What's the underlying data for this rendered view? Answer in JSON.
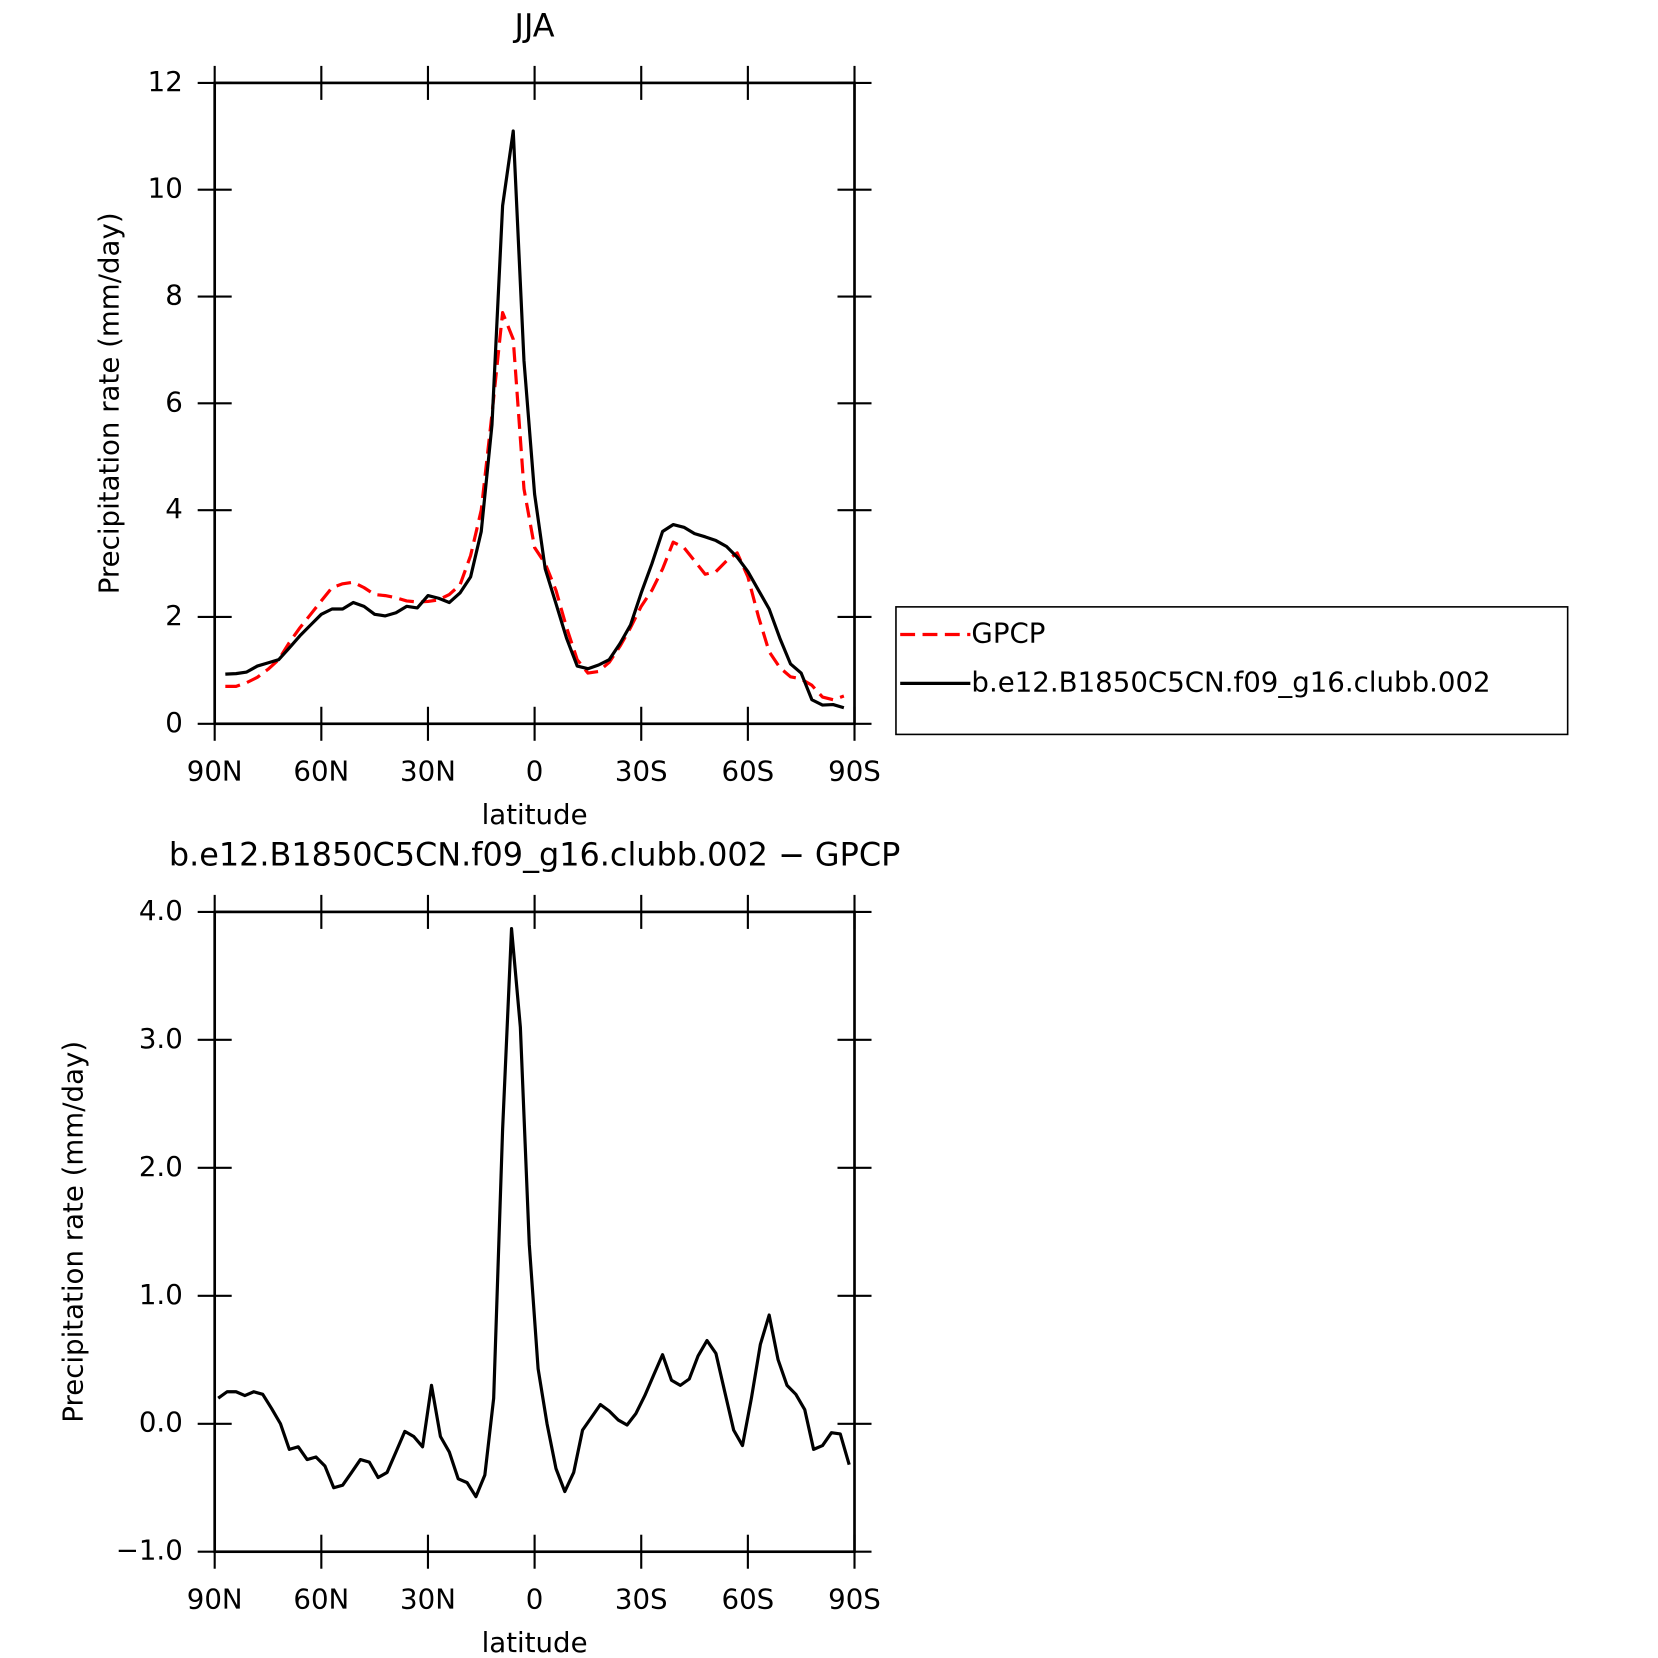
{
  "chart_data": [
    {
      "type": "line",
      "title": "JJA",
      "xlabel": "latitude",
      "ylabel": "Precipitation rate (mm/day)",
      "x": [
        87,
        84,
        81,
        78,
        75,
        72,
        69,
        66,
        63,
        60,
        57,
        54,
        51,
        48,
        45,
        42,
        39,
        36,
        33,
        30,
        27,
        24,
        21,
        18,
        15,
        12,
        9,
        6,
        3,
        0,
        -3,
        -6,
        -9,
        -12,
        -15,
        -18,
        -21,
        -24,
        -27,
        -30,
        -33,
        -36,
        -39,
        -42,
        -45,
        -48,
        -51,
        -54,
        -57,
        -60,
        -63,
        -66,
        -69,
        -72,
        -75,
        -78,
        -81,
        -84,
        -87
      ],
      "series": [
        {
          "name": "GPCP",
          "color": "#ff0000",
          "line_style": "dashed",
          "values": [
            0.7,
            0.7,
            0.77,
            0.87,
            1.02,
            1.2,
            1.52,
            1.8,
            2.05,
            2.3,
            2.55,
            2.62,
            2.65,
            2.55,
            2.42,
            2.4,
            2.36,
            2.3,
            2.28,
            2.29,
            2.32,
            2.42,
            2.6,
            3.15,
            4.0,
            5.8,
            7.7,
            7.2,
            4.4,
            3.3,
            3.0,
            2.5,
            1.8,
            1.2,
            0.95,
            0.98,
            1.15,
            1.45,
            1.8,
            2.2,
            2.5,
            2.9,
            3.4,
            3.3,
            3.05,
            2.8,
            2.85,
            3.05,
            3.2,
            2.75,
            2.0,
            1.35,
            1.05,
            0.88,
            0.84,
            0.72,
            0.5,
            0.45,
            0.52
          ]
        },
        {
          "name": "b.e12.B1850C5CN.f09_g16.clubb.002",
          "color": "#000000",
          "line_style": "solid",
          "values": [
            0.93,
            0.94,
            0.97,
            1.08,
            1.14,
            1.2,
            1.42,
            1.65,
            1.85,
            2.05,
            2.15,
            2.15,
            2.27,
            2.2,
            2.05,
            2.02,
            2.08,
            2.2,
            2.17,
            2.4,
            2.35,
            2.27,
            2.45,
            2.75,
            3.6,
            5.6,
            9.7,
            11.1,
            6.8,
            4.3,
            2.9,
            2.25,
            1.6,
            1.08,
            1.03,
            1.1,
            1.2,
            1.5,
            1.85,
            2.45,
            3.0,
            3.6,
            3.73,
            3.68,
            3.56,
            3.5,
            3.43,
            3.32,
            3.12,
            2.85,
            2.5,
            2.15,
            1.6,
            1.12,
            0.95,
            0.45,
            0.35,
            0.36,
            0.3
          ]
        }
      ],
      "xlim": [
        90,
        -90
      ],
      "xticks": [
        {
          "value": 90,
          "label": "90N"
        },
        {
          "value": 60,
          "label": "60N"
        },
        {
          "value": 30,
          "label": "30N"
        },
        0,
        {
          "value": -30,
          "label": "30S"
        },
        {
          "value": -60,
          "label": "60S"
        },
        {
          "value": -90,
          "label": "90S"
        }
      ],
      "ylim": [
        0,
        12
      ],
      "yticks": [
        0,
        2,
        4,
        6,
        8,
        10,
        12
      ],
      "legend": "outside-right"
    },
    {
      "type": "line",
      "title": "b.e12.B1850C5CN.f09_g16.clubb.002 − GPCP",
      "xlabel": "latitude",
      "ylabel": "Precipitation rate (mm/day)",
      "x": [
        89,
        86.5,
        84,
        81.5,
        79,
        76.5,
        74,
        71.5,
        69,
        66.5,
        64,
        61.5,
        59,
        56.5,
        54,
        51.5,
        49,
        46.5,
        44,
        41.5,
        39,
        36.5,
        34,
        31.5,
        29,
        26.5,
        24,
        21.5,
        19,
        16.5,
        14,
        11.5,
        9,
        6.5,
        4,
        1.5,
        -1,
        -3.5,
        -6,
        -8.5,
        -11,
        -13.5,
        -16,
        -18.5,
        -21,
        -23.5,
        -26,
        -28.5,
        -31,
        -33.5,
        -36,
        -38.5,
        -41,
        -43.5,
        -46,
        -48.5,
        -51,
        -53.5,
        -56,
        -58.5,
        -61,
        -63.5,
        -66,
        -68.5,
        -71,
        -73.5,
        -76,
        -78.5,
        -81,
        -83.5,
        -86,
        -88.5
      ],
      "series": [
        {
          "color": "#000000",
          "line_style": "solid",
          "values": [
            0.2,
            0.25,
            0.25,
            0.22,
            0.25,
            0.23,
            0.12,
            0.0,
            -0.2,
            -0.18,
            -0.28,
            -0.26,
            -0.33,
            -0.5,
            -0.48,
            -0.38,
            -0.28,
            -0.3,
            -0.42,
            -0.38,
            -0.22,
            -0.06,
            -0.1,
            -0.18,
            0.3,
            -0.1,
            -0.22,
            -0.43,
            -0.46,
            -0.57,
            -0.4,
            0.2,
            2.3,
            3.87,
            3.1,
            1.4,
            0.43,
            0.0,
            -0.35,
            -0.53,
            -0.38,
            -0.05,
            0.05,
            0.15,
            0.1,
            0.03,
            -0.01,
            0.08,
            0.22,
            0.38,
            0.54,
            0.34,
            0.3,
            0.35,
            0.53,
            0.65,
            0.55,
            0.25,
            -0.05,
            -0.17,
            0.2,
            0.62,
            0.85,
            0.5,
            0.3,
            0.23,
            0.11,
            -0.2,
            -0.17,
            -0.07,
            -0.08,
            -0.32
          ]
        }
      ],
      "xlim": [
        90,
        -90
      ],
      "xticks": [
        {
          "value": 90,
          "label": "90N"
        },
        {
          "value": 60,
          "label": "60N"
        },
        {
          "value": 30,
          "label": "30N"
        },
        0,
        {
          "value": -30,
          "label": "30S"
        },
        {
          "value": -60,
          "label": "60S"
        },
        {
          "value": -90,
          "label": "90S"
        }
      ],
      "ylim": [
        -1,
        4
      ],
      "yticks": [
        {
          "value": -1,
          "label": "−1.0"
        },
        {
          "value": 0,
          "label": "0.0"
        },
        {
          "value": 1,
          "label": "1.0"
        },
        {
          "value": 2,
          "label": "2.0"
        },
        {
          "value": 3,
          "label": "3.0"
        },
        {
          "value": 4,
          "label": "4.0"
        }
      ]
    }
  ]
}
